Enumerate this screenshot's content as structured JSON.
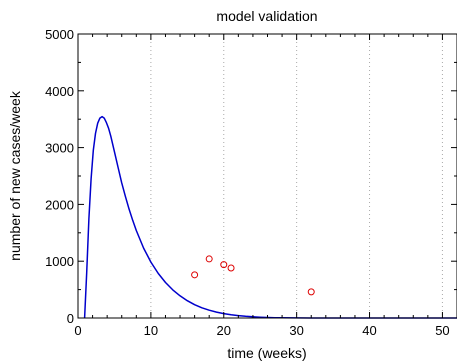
{
  "chart_data": {
    "type": "line",
    "title": "model validation",
    "xlabel": "time (weeks)",
    "ylabel": "number of new cases/week",
    "xlim": [
      0,
      52
    ],
    "ylim": [
      0,
      5000
    ],
    "xticks": [
      0,
      10,
      20,
      30,
      40,
      50
    ],
    "yticks": [
      0,
      1000,
      2000,
      3000,
      4000,
      5000
    ],
    "grid": "vertical dotted",
    "colors": {
      "model": "#0000cc",
      "observed": "#dd0000",
      "grid": "#aaaaaa",
      "axis": "#000000"
    },
    "series": [
      {
        "kind": "line",
        "x": [
          0.9,
          1.2,
          1.5,
          1.8,
          2.1,
          2.4,
          2.7,
          3.0,
          3.3,
          3.6,
          3.9,
          4.2,
          4.5,
          5.0,
          5.5,
          6.0,
          6.5,
          7.0,
          7.5,
          8.0,
          9.0,
          10.0,
          11.0,
          12.0,
          13.0,
          14.0,
          15.0,
          16.0,
          17.0,
          18.0,
          19.0,
          20.0,
          21.0,
          22.0,
          23.0,
          24.0,
          25.0,
          26.0,
          27.0,
          28.0,
          30.0,
          32.0,
          35.0,
          40.0,
          45.0,
          52.0
        ],
        "y": [
          0,
          800,
          1750,
          2450,
          2950,
          3250,
          3430,
          3520,
          3545,
          3520,
          3440,
          3340,
          3200,
          2930,
          2650,
          2380,
          2140,
          1920,
          1720,
          1540,
          1230,
          985,
          785,
          625,
          495,
          390,
          305,
          235,
          180,
          138,
          104,
          78,
          57,
          42,
          30,
          21,
          14,
          9,
          5,
          3,
          1,
          0,
          0,
          0,
          0,
          0
        ]
      },
      {
        "kind": "scatter",
        "x": [
          16,
          18,
          20,
          21,
          32
        ],
        "y": [
          760,
          1040,
          940,
          880,
          460
        ]
      }
    ]
  }
}
